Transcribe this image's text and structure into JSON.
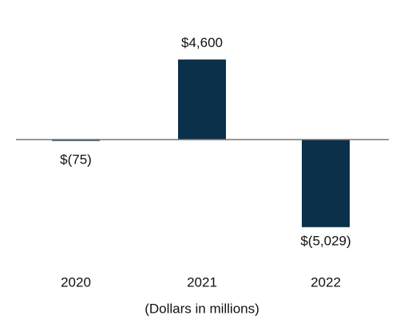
{
  "chart_data": {
    "type": "bar",
    "categories": [
      "2020",
      "2021",
      "2022"
    ],
    "values": [
      -75,
      4600,
      -5029
    ],
    "value_labels": [
      "$(75)",
      "$4,600",
      "$(5,029)"
    ],
    "color": "#0b304a",
    "x_label": "(Dollars in millions)",
    "ylim": [
      -6000,
      6000
    ]
  }
}
